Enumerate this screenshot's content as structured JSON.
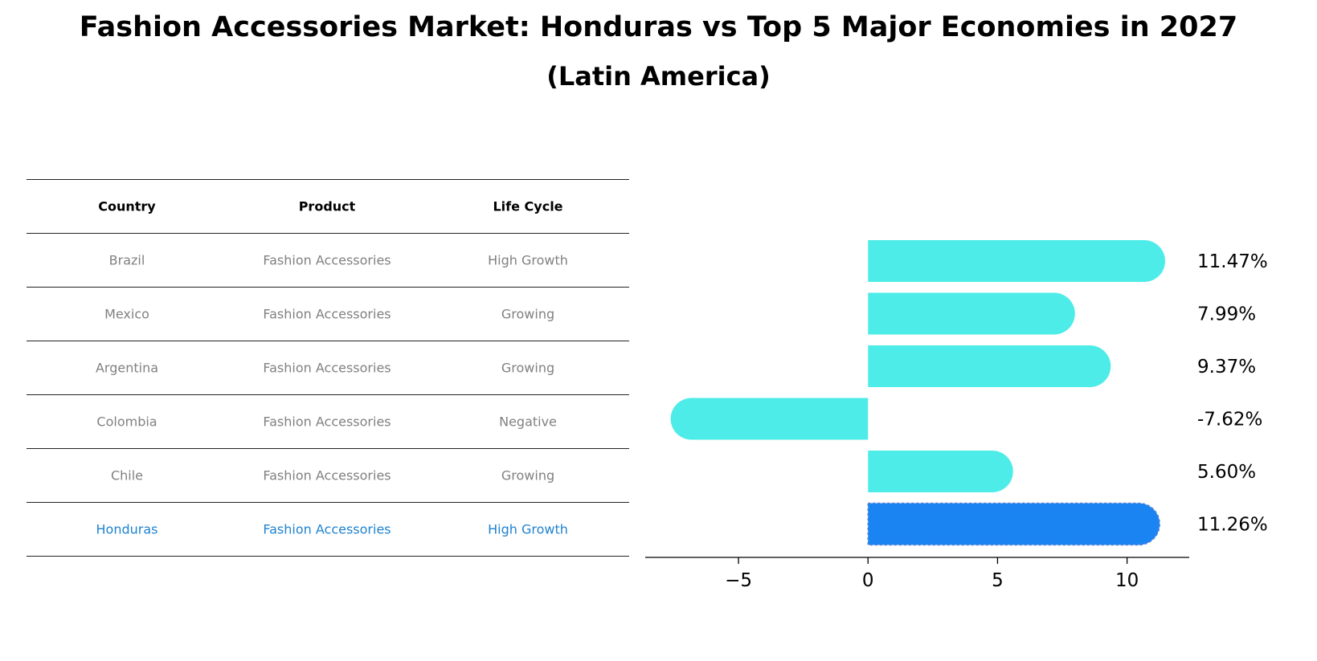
{
  "title": "Fashion Accessories Market: Honduras vs Top 5 Major Economies in 2027",
  "subtitle": "(Latin America)",
  "table": {
    "headers": [
      "Country",
      "Product",
      "Life Cycle"
    ],
    "rows": [
      [
        "Brazil",
        "Fashion Accessories",
        "High Growth"
      ],
      [
        "Mexico",
        "Fashion Accessories",
        "Growing"
      ],
      [
        "Argentina",
        "Fashion Accessories",
        "Growing"
      ],
      [
        "Colombia",
        "Fashion Accessories",
        "Negative"
      ],
      [
        "Chile",
        "Fashion Accessories",
        "Growing"
      ],
      [
        "Honduras",
        "Fashion Accessories",
        "High Growth"
      ]
    ],
    "highlight_row": 5
  },
  "chart_data": {
    "type": "bar",
    "orientation": "horizontal",
    "categories": [
      "Brazil",
      "Mexico",
      "Argentina",
      "Colombia",
      "Chile",
      "Honduras"
    ],
    "values": [
      11.47,
      7.99,
      9.37,
      -7.62,
      5.6,
      11.26
    ],
    "value_labels": [
      "11.47%",
      "7.99%",
      "9.37%",
      "-7.62%",
      "5.60%",
      "11.26%"
    ],
    "xlim": [
      -8.6,
      12.4
    ],
    "xticks": [
      -5,
      0,
      5,
      10
    ],
    "xtick_labels": [
      "−5",
      "0",
      "5",
      "10"
    ],
    "grid": false,
    "bar_color": "#4EECE8",
    "highlight_color": "#1A85F2",
    "highlight_index": 5
  }
}
